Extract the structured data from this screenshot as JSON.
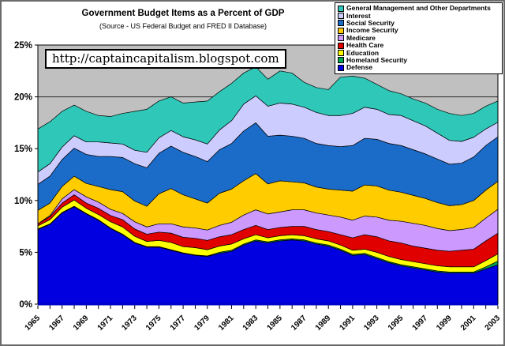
{
  "chart": {
    "title": "Government Budget Items as a Percent of GDP",
    "subtitle": "(Source - US Federal Budget and FRED II Database)",
    "watermark": "http://captaincapitalism.blogspot.com",
    "plot_background": "#c0c0c0",
    "gridline_color": "#2a2a2a",
    "x_axis_line_color": "#0000cc",
    "border_color": "#000000"
  },
  "chart_data": {
    "type": "area",
    "stacked": true,
    "title": "Government Budget Items as a Percent of GDP",
    "subtitle": "(Source - US Federal Budget and FRED II Database)",
    "xlabel": "",
    "ylabel": "",
    "ylim": [
      0,
      25
    ],
    "grid": true,
    "y_tick_values": [
      0,
      5,
      10,
      15,
      20,
      25
    ],
    "y_tick_labels": [
      "0%",
      "5%",
      "10%",
      "15%",
      "20%",
      "25%"
    ],
    "x": [
      1965,
      1966,
      1967,
      1968,
      1969,
      1970,
      1971,
      1972,
      1973,
      1974,
      1975,
      1976,
      1977,
      1978,
      1979,
      1980,
      1981,
      1982,
      1983,
      1984,
      1985,
      1986,
      1987,
      1988,
      1989,
      1990,
      1991,
      1992,
      1993,
      1994,
      1995,
      1996,
      1997,
      1998,
      1999,
      2000,
      2001,
      2002,
      2003
    ],
    "x_tick_labels": [
      "1965",
      "1967",
      "1969",
      "1971",
      "1973",
      "1975",
      "1977",
      "1979",
      "1981",
      "1983",
      "1985",
      "1987",
      "1989",
      "1991",
      "1993",
      "1995",
      "1997",
      "1999",
      "2001",
      "2003"
    ],
    "legend_position": "top-right",
    "legend_top_to_bottom": [
      "General Management and Other Departments",
      "Interest",
      "Social Security",
      "Income Security",
      "Medicare",
      "Health Care",
      "Education",
      "Homeland Security",
      "Defense"
    ],
    "series": [
      {
        "name": "Defense",
        "color": "#0000e0",
        "values": [
          7.2,
          7.7,
          8.8,
          9.4,
          8.7,
          8.1,
          7.3,
          6.7,
          5.9,
          5.5,
          5.5,
          5.2,
          4.9,
          4.7,
          4.6,
          4.9,
          5.1,
          5.7,
          6.1,
          5.9,
          6.1,
          6.2,
          6.1,
          5.8,
          5.6,
          5.2,
          4.7,
          4.8,
          4.4,
          4.0,
          3.7,
          3.5,
          3.3,
          3.1,
          3.0,
          3.0,
          3.0,
          3.4,
          3.8
        ]
      },
      {
        "name": "Homeland Security",
        "color": "#00a550",
        "values": [
          0.05,
          0.05,
          0.05,
          0.05,
          0.05,
          0.05,
          0.05,
          0.05,
          0.05,
          0.05,
          0.05,
          0.05,
          0.05,
          0.05,
          0.05,
          0.1,
          0.1,
          0.1,
          0.1,
          0.1,
          0.1,
          0.1,
          0.1,
          0.1,
          0.1,
          0.1,
          0.1,
          0.1,
          0.1,
          0.1,
          0.1,
          0.1,
          0.1,
          0.1,
          0.1,
          0.1,
          0.1,
          0.2,
          0.35
        ]
      },
      {
        "name": "Education",
        "color": "#ffff00",
        "values": [
          0.3,
          0.4,
          0.5,
          0.6,
          0.5,
          0.5,
          0.6,
          0.7,
          0.6,
          0.5,
          0.6,
          0.7,
          0.6,
          0.7,
          0.6,
          0.6,
          0.6,
          0.5,
          0.5,
          0.4,
          0.4,
          0.4,
          0.4,
          0.4,
          0.4,
          0.4,
          0.4,
          0.4,
          0.5,
          0.5,
          0.5,
          0.5,
          0.5,
          0.5,
          0.5,
          0.5,
          0.5,
          0.6,
          0.7
        ]
      },
      {
        "name": "Health Care",
        "color": "#e00000",
        "values": [
          0.2,
          0.3,
          0.4,
          0.5,
          0.5,
          0.6,
          0.6,
          0.7,
          0.7,
          0.7,
          0.8,
          0.9,
          0.9,
          0.9,
          0.9,
          0.9,
          0.9,
          0.9,
          0.9,
          0.8,
          0.8,
          0.8,
          0.9,
          0.9,
          0.9,
          1.0,
          1.2,
          1.4,
          1.5,
          1.5,
          1.6,
          1.5,
          1.5,
          1.5,
          1.5,
          1.6,
          1.7,
          1.9,
          2.0
        ]
      },
      {
        "name": "Medicare",
        "color": "#cc99ff",
        "values": [
          0.0,
          0.1,
          0.4,
          0.5,
          0.6,
          0.6,
          0.6,
          0.6,
          0.7,
          0.7,
          0.8,
          0.9,
          1.0,
          1.0,
          1.0,
          1.1,
          1.2,
          1.4,
          1.5,
          1.5,
          1.5,
          1.6,
          1.6,
          1.6,
          1.6,
          1.7,
          1.7,
          1.8,
          1.9,
          2.0,
          2.1,
          2.2,
          2.2,
          2.1,
          2.0,
          2.0,
          2.1,
          2.2,
          2.3
        ]
      },
      {
        "name": "Income Security",
        "color": "#ffcc00",
        "values": [
          1.3,
          1.2,
          1.2,
          1.3,
          1.3,
          1.5,
          1.9,
          2.1,
          2.0,
          2.0,
          2.9,
          3.4,
          3.1,
          2.8,
          2.6,
          3.1,
          3.2,
          3.3,
          3.5,
          2.9,
          3.0,
          2.7,
          2.6,
          2.5,
          2.5,
          2.6,
          2.8,
          3.0,
          3.0,
          2.9,
          2.8,
          2.7,
          2.6,
          2.5,
          2.4,
          2.4,
          2.6,
          2.7,
          2.7
        ]
      },
      {
        "name": "Social Security",
        "color": "#1b6cc9",
        "values": [
          2.5,
          2.6,
          2.6,
          2.7,
          2.8,
          2.9,
          3.2,
          3.3,
          3.6,
          3.7,
          3.9,
          4.1,
          4.1,
          4.1,
          4.0,
          4.2,
          4.4,
          4.8,
          4.9,
          4.6,
          4.4,
          4.4,
          4.3,
          4.2,
          4.2,
          4.2,
          4.4,
          4.5,
          4.5,
          4.5,
          4.5,
          4.4,
          4.3,
          4.2,
          4.0,
          4.0,
          4.2,
          4.3,
          4.3
        ]
      },
      {
        "name": "Interest",
        "color": "#ccccff",
        "values": [
          1.2,
          1.2,
          1.2,
          1.2,
          1.2,
          1.4,
          1.3,
          1.3,
          1.3,
          1.5,
          1.5,
          1.5,
          1.5,
          1.6,
          1.7,
          1.9,
          2.2,
          2.6,
          2.6,
          2.9,
          3.1,
          3.1,
          3.0,
          3.0,
          2.9,
          3.0,
          3.1,
          3.0,
          2.9,
          2.8,
          2.9,
          2.8,
          2.7,
          2.5,
          2.3,
          2.1,
          1.9,
          1.6,
          1.4
        ]
      },
      {
        "name": "General Management and Other Departments",
        "color": "#2fc7b7",
        "values": [
          4.15,
          4.05,
          3.45,
          2.95,
          2.95,
          2.55,
          2.55,
          2.95,
          3.75,
          4.15,
          3.55,
          3.25,
          3.25,
          3.65,
          4.15,
          3.7,
          3.6,
          3.0,
          2.8,
          2.6,
          3.1,
          3.0,
          2.4,
          2.4,
          2.5,
          3.7,
          3.6,
          2.8,
          2.4,
          2.3,
          2.1,
          2.1,
          2.2,
          2.3,
          2.6,
          2.5,
          2.3,
          2.2,
          2.05
        ]
      }
    ]
  }
}
